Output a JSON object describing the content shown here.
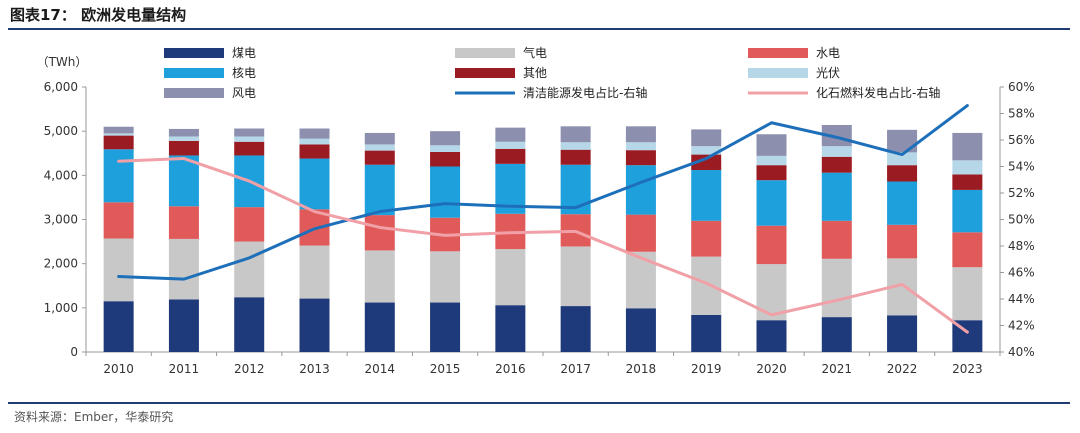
{
  "header": {
    "title": "图表17：  欧洲发电量结构"
  },
  "footer": {
    "source": "资料来源：Ember，华泰研究"
  },
  "chart_data": {
    "type": "bar",
    "stacked": true,
    "categories": [
      "2010",
      "2011",
      "2012",
      "2013",
      "2014",
      "2015",
      "2016",
      "2017",
      "2018",
      "2019",
      "2020",
      "2021",
      "2022",
      "2023"
    ],
    "ylabel": "（TWh）",
    "ylim": [
      0,
      6000
    ],
    "yticks": [
      "0",
      "1,000",
      "2,000",
      "3,000",
      "4,000",
      "5,000",
      "6,000"
    ],
    "y2lim": [
      40,
      60
    ],
    "y2ticks": [
      "40%",
      "42%",
      "44%",
      "46%",
      "48%",
      "50%",
      "52%",
      "54%",
      "56%",
      "58%",
      "60%"
    ],
    "grid": false,
    "legend_position": "top",
    "series": [
      {
        "name": "煤电",
        "kind": "bar",
        "color": "#1f3a7a",
        "values": [
          1150,
          1190,
          1240,
          1210,
          1120,
          1120,
          1060,
          1040,
          990,
          840,
          720,
          790,
          830,
          720
        ]
      },
      {
        "name": "气电",
        "kind": "bar",
        "color": "#c8c8c8",
        "values": [
          1420,
          1370,
          1260,
          1200,
          1180,
          1160,
          1270,
          1350,
          1280,
          1320,
          1270,
          1320,
          1290,
          1200
        ]
      },
      {
        "name": "水电",
        "kind": "bar",
        "color": "#e05a5a",
        "values": [
          820,
          740,
          780,
          820,
          800,
          760,
          800,
          730,
          840,
          810,
          870,
          860,
          760,
          790
        ]
      },
      {
        "name": "核电",
        "kind": "bar",
        "color": "#1ea0dd",
        "values": [
          1200,
          1150,
          1170,
          1150,
          1140,
          1160,
          1130,
          1120,
          1120,
          1150,
          1030,
          1090,
          980,
          960
        ]
      },
      {
        "name": "其他",
        "kind": "bar",
        "color": "#9b1b22",
        "values": [
          310,
          330,
          310,
          320,
          320,
          330,
          340,
          340,
          340,
          350,
          340,
          360,
          370,
          350
        ]
      },
      {
        "name": "光伏",
        "kind": "bar",
        "color": "#b5d7e8",
        "values": [
          50,
          100,
          120,
          130,
          140,
          150,
          160,
          170,
          180,
          190,
          210,
          240,
          290,
          320
        ]
      },
      {
        "name": "风电",
        "kind": "bar",
        "color": "#8c8fae",
        "values": [
          150,
          170,
          180,
          230,
          260,
          320,
          320,
          360,
          360,
          380,
          490,
          480,
          510,
          620
        ]
      },
      {
        "name": "清洁能源发电占比-右轴",
        "kind": "line",
        "axis": "right",
        "color": "#1e6fba",
        "values": [
          45.7,
          45.5,
          47.1,
          49.3,
          50.6,
          51.2,
          51.0,
          50.9,
          52.8,
          54.6,
          57.3,
          56.2,
          54.9,
          58.6
        ]
      },
      {
        "name": "化石燃料发电占比-右轴",
        "kind": "line",
        "axis": "right",
        "color": "#f0a0a6",
        "values": [
          54.4,
          54.6,
          52.9,
          50.6,
          49.4,
          48.8,
          49.0,
          49.1,
          47.1,
          45.2,
          42.8,
          43.9,
          45.1,
          41.5
        ]
      }
    ]
  }
}
